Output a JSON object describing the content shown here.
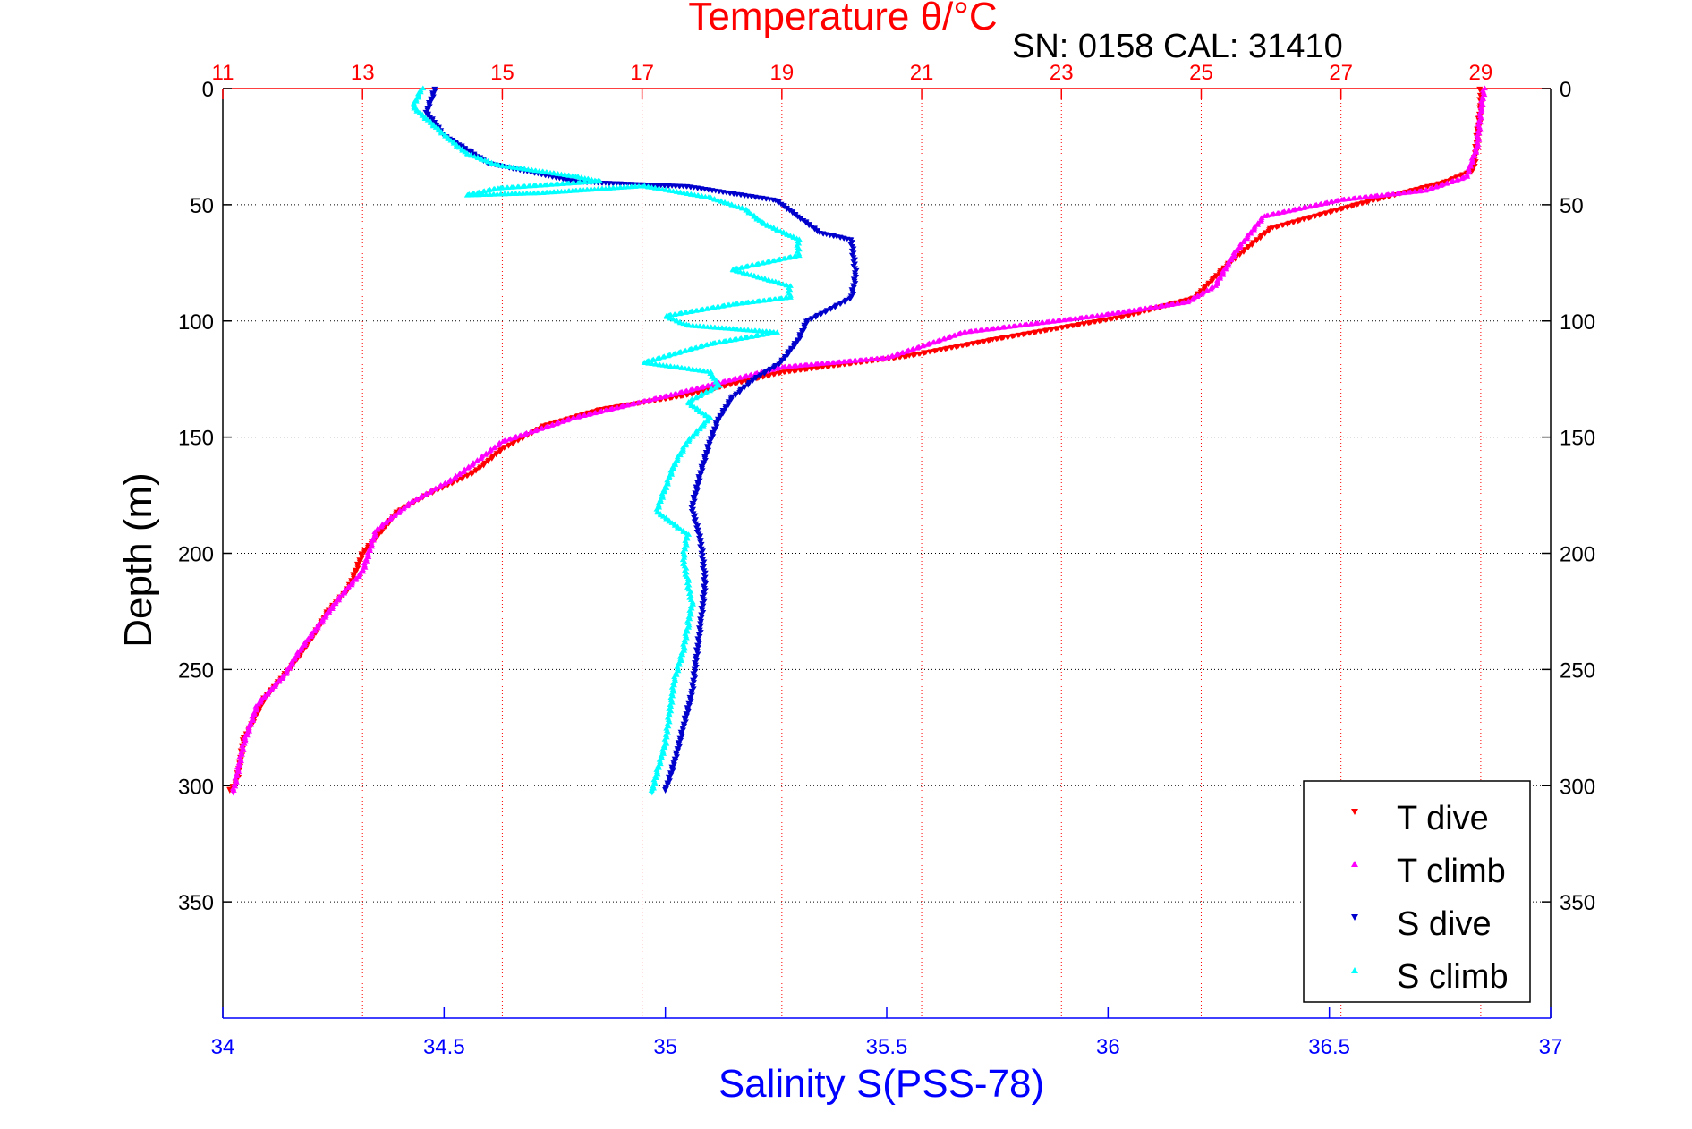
{
  "chart_data": {
    "type": "scatter",
    "title": "Temperature θ/°C",
    "subtitle": "SN: 0158  CAL: 31410",
    "ylabel": "Depth (m)",
    "xlabel": "Salinity S(PSS-78)",
    "y_axis": {
      "range": [
        0,
        400
      ],
      "inverted": true,
      "ticks": [
        0,
        50,
        100,
        150,
        200,
        250,
        300,
        350
      ],
      "tick_labels": [
        "0",
        "50",
        "100",
        "150",
        "200",
        "250",
        "300",
        "350"
      ]
    },
    "x_bottom": {
      "range": [
        34,
        37
      ],
      "ticks": [
        34,
        34.5,
        35,
        35.5,
        36,
        36.5,
        37
      ],
      "tick_labels": [
        "34",
        "34.5",
        "35",
        "35.5",
        "36",
        "36.5",
        "37"
      ],
      "color": "#0000ff"
    },
    "x_top": {
      "range": [
        11,
        30
      ],
      "ticks": [
        11,
        13,
        15,
        17,
        19,
        21,
        23,
        25,
        27,
        29
      ],
      "tick_labels": [
        "11",
        "13",
        "15",
        "17",
        "19",
        "21",
        "23",
        "25",
        "27",
        "29"
      ],
      "color": "#ff0000"
    },
    "grid": true,
    "legend_position": "bottom-right",
    "series": [
      {
        "name": "T dive",
        "axis": "top",
        "color": "#ff0000",
        "marker": "triangle-down",
        "points": [
          [
            29.0,
            0
          ],
          [
            29.0,
            8
          ],
          [
            28.95,
            20
          ],
          [
            28.9,
            35
          ],
          [
            28.5,
            40
          ],
          [
            27.2,
            50
          ],
          [
            26.0,
            60
          ],
          [
            25.4,
            75
          ],
          [
            24.9,
            90
          ],
          [
            23.9,
            98
          ],
          [
            22.0,
            108
          ],
          [
            20.8,
            115
          ],
          [
            19.0,
            122
          ],
          [
            17.6,
            132
          ],
          [
            16.4,
            138
          ],
          [
            15.6,
            145
          ],
          [
            15.0,
            155
          ],
          [
            14.6,
            165
          ],
          [
            13.9,
            175
          ],
          [
            13.5,
            182
          ],
          [
            13.0,
            200
          ],
          [
            12.8,
            215
          ],
          [
            12.5,
            225
          ],
          [
            12.3,
            235
          ],
          [
            12.0,
            248
          ],
          [
            11.6,
            262
          ],
          [
            11.3,
            280
          ],
          [
            11.2,
            298
          ],
          [
            11.1,
            302
          ]
        ]
      },
      {
        "name": "T climb",
        "axis": "top",
        "color": "#ff00ff",
        "marker": "triangle-up",
        "points": [
          [
            29.05,
            0
          ],
          [
            29.0,
            10
          ],
          [
            28.95,
            25
          ],
          [
            28.8,
            38
          ],
          [
            28.2,
            44
          ],
          [
            27.0,
            48
          ],
          [
            25.9,
            55
          ],
          [
            25.5,
            70
          ],
          [
            25.2,
            85
          ],
          [
            24.8,
            92
          ],
          [
            23.5,
            98
          ],
          [
            21.6,
            105
          ],
          [
            20.5,
            116
          ],
          [
            19.0,
            120
          ],
          [
            17.4,
            132
          ],
          [
            16.0,
            142
          ],
          [
            15.0,
            152
          ],
          [
            14.3,
            168
          ],
          [
            13.7,
            178
          ],
          [
            13.2,
            190
          ],
          [
            13.0,
            208
          ],
          [
            12.7,
            218
          ],
          [
            12.4,
            230
          ],
          [
            12.1,
            242
          ],
          [
            11.9,
            252
          ],
          [
            11.5,
            265
          ],
          [
            11.3,
            282
          ],
          [
            11.2,
            296
          ],
          [
            11.15,
            303
          ]
        ]
      },
      {
        "name": "S dive",
        "axis": "bottom",
        "color": "#0000cc",
        "marker": "triangle-down",
        "points": [
          [
            34.48,
            0
          ],
          [
            34.46,
            10
          ],
          [
            34.5,
            20
          ],
          [
            34.6,
            32
          ],
          [
            34.8,
            40
          ],
          [
            35.05,
            42
          ],
          [
            35.25,
            48
          ],
          [
            35.3,
            55
          ],
          [
            35.35,
            62
          ],
          [
            35.42,
            65
          ],
          [
            35.43,
            80
          ],
          [
            35.42,
            90
          ],
          [
            35.32,
            100
          ],
          [
            35.3,
            108
          ],
          [
            35.26,
            118
          ],
          [
            35.2,
            125
          ],
          [
            35.15,
            133
          ],
          [
            35.12,
            142
          ],
          [
            35.1,
            152
          ],
          [
            35.08,
            165
          ],
          [
            35.06,
            180
          ],
          [
            35.08,
            195
          ],
          [
            35.09,
            212
          ],
          [
            35.08,
            230
          ],
          [
            35.07,
            245
          ],
          [
            35.06,
            260
          ],
          [
            35.04,
            275
          ],
          [
            35.02,
            290
          ],
          [
            35.0,
            302
          ]
        ]
      },
      {
        "name": "S climb",
        "axis": "bottom",
        "color": "#00ffff",
        "marker": "triangle-up",
        "points": [
          [
            34.45,
            0
          ],
          [
            34.43,
            8
          ],
          [
            34.5,
            20
          ],
          [
            34.55,
            28
          ],
          [
            34.62,
            33
          ],
          [
            34.8,
            38
          ],
          [
            34.85,
            40
          ],
          [
            34.62,
            43
          ],
          [
            34.55,
            46
          ],
          [
            34.72,
            45
          ],
          [
            34.95,
            42
          ],
          [
            35.1,
            47
          ],
          [
            35.18,
            52
          ],
          [
            35.22,
            58
          ],
          [
            35.3,
            65
          ],
          [
            35.3,
            72
          ],
          [
            35.15,
            78
          ],
          [
            35.28,
            85
          ],
          [
            35.28,
            90
          ],
          [
            35.15,
            93
          ],
          [
            35.0,
            98
          ],
          [
            35.05,
            102
          ],
          [
            35.25,
            105
          ],
          [
            35.1,
            110
          ],
          [
            34.95,
            118
          ],
          [
            35.1,
            122
          ],
          [
            35.12,
            128
          ],
          [
            35.05,
            135
          ],
          [
            35.1,
            142
          ],
          [
            35.05,
            152
          ],
          [
            35.02,
            162
          ],
          [
            35.0,
            172
          ],
          [
            34.98,
            182
          ],
          [
            35.05,
            192
          ],
          [
            35.04,
            202
          ],
          [
            35.05,
            212
          ],
          [
            35.06,
            222
          ],
          [
            35.05,
            232
          ],
          [
            35.04,
            242
          ],
          [
            35.02,
            255
          ],
          [
            35.01,
            268
          ],
          [
            35.0,
            282
          ],
          [
            34.98,
            295
          ],
          [
            34.97,
            303
          ]
        ]
      }
    ]
  }
}
